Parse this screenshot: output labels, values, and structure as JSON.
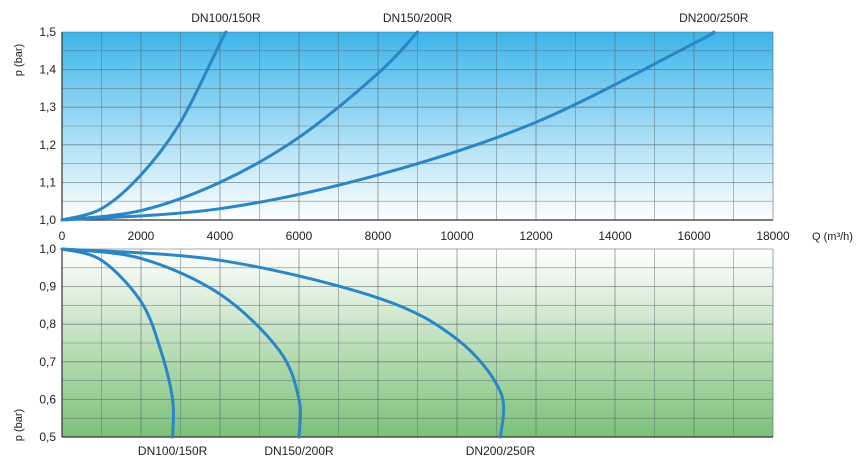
{
  "chart_data": [
    {
      "type": "line",
      "ylabel": "p (bar)",
      "xlabel": "Q (m³/h)",
      "xlim": [
        0,
        18000
      ],
      "ylim": [
        1.0,
        1.5
      ],
      "x_ticks": [
        "0",
        "2000",
        "4000",
        "6000",
        "8000",
        "10000",
        "12000",
        "14000",
        "16000",
        "18000"
      ],
      "y_ticks": [
        "1,0",
        "1,1",
        "1,2",
        "1,3",
        "1,4",
        "1,5"
      ],
      "grid": true,
      "colors": {
        "line": "#2a86c6",
        "bg_top": "#3db5ea",
        "bg_bottom": "#ffffff"
      },
      "series": [
        {
          "name": "DN100/150R",
          "x": [
            0,
            1000,
            2000,
            3000,
            4000,
            4150
          ],
          "y": [
            1.0,
            1.03,
            1.12,
            1.26,
            1.47,
            1.5
          ]
        },
        {
          "name": "DN150/200R",
          "x": [
            0,
            2000,
            4000,
            6000,
            8000,
            9000
          ],
          "y": [
            1.0,
            1.025,
            1.1,
            1.22,
            1.39,
            1.5
          ]
        },
        {
          "name": "DN200/250R",
          "x": [
            0,
            4000,
            8000,
            12000,
            16000,
            16500
          ],
          "y": [
            1.0,
            1.03,
            1.12,
            1.26,
            1.47,
            1.5
          ]
        }
      ]
    },
    {
      "type": "line",
      "ylabel": "p (bar)",
      "ylim": [
        0.5,
        1.0
      ],
      "y_ticks": [
        "1,0",
        "0,9",
        "0,8",
        "0,7",
        "0,6",
        "0,5"
      ],
      "grid": true,
      "colors": {
        "line": "#2a86c6",
        "bg_top": "#ffffff",
        "bg_bottom": "#7cc078"
      },
      "series": [
        {
          "name": "DN100/150R",
          "x": [
            0,
            1000,
            2000,
            2500,
            2800,
            2800
          ],
          "y": [
            1.0,
            0.97,
            0.86,
            0.73,
            0.6,
            0.5
          ]
        },
        {
          "name": "DN150/200R",
          "x": [
            0,
            2000,
            4000,
            5500,
            6000,
            6000
          ],
          "y": [
            1.0,
            0.975,
            0.88,
            0.73,
            0.6,
            0.5
          ]
        },
        {
          "name": "DN200/250R",
          "x": [
            0,
            4000,
            8000,
            10000,
            11100,
            11100
          ],
          "y": [
            1.0,
            0.97,
            0.87,
            0.76,
            0.62,
            0.5
          ]
        }
      ]
    }
  ]
}
